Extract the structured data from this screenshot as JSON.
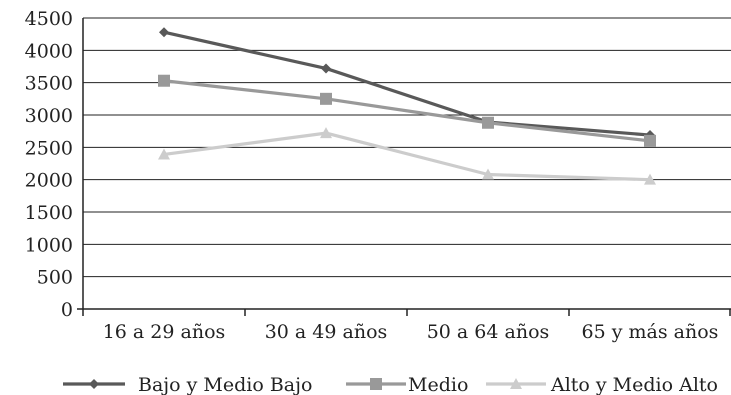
{
  "chart_data": {
    "type": "line",
    "title": "",
    "xlabel": "",
    "ylabel": "",
    "categories": [
      "16 a 29 años",
      "30 a 49 años",
      "50 a 64 años",
      "65 y más años"
    ],
    "ylim": [
      0,
      4500
    ],
    "yticks": [
      0,
      500,
      1000,
      1500,
      2000,
      2500,
      3000,
      3500,
      4000,
      4500
    ],
    "grid": true,
    "legend_position": "bottom",
    "series": [
      {
        "name": "Bajo y Medio Bajo",
        "values": [
          4280,
          3720,
          2890,
          2690
        ],
        "color": "#595959",
        "marker": "diamond"
      },
      {
        "name": "Medio",
        "values": [
          3530,
          3250,
          2880,
          2600
        ],
        "color": "#999999",
        "marker": "square"
      },
      {
        "name": "Alto y Medio Alto",
        "values": [
          2390,
          2720,
          2080,
          2000
        ],
        "color": "#cccccc",
        "marker": "triangle"
      }
    ]
  }
}
